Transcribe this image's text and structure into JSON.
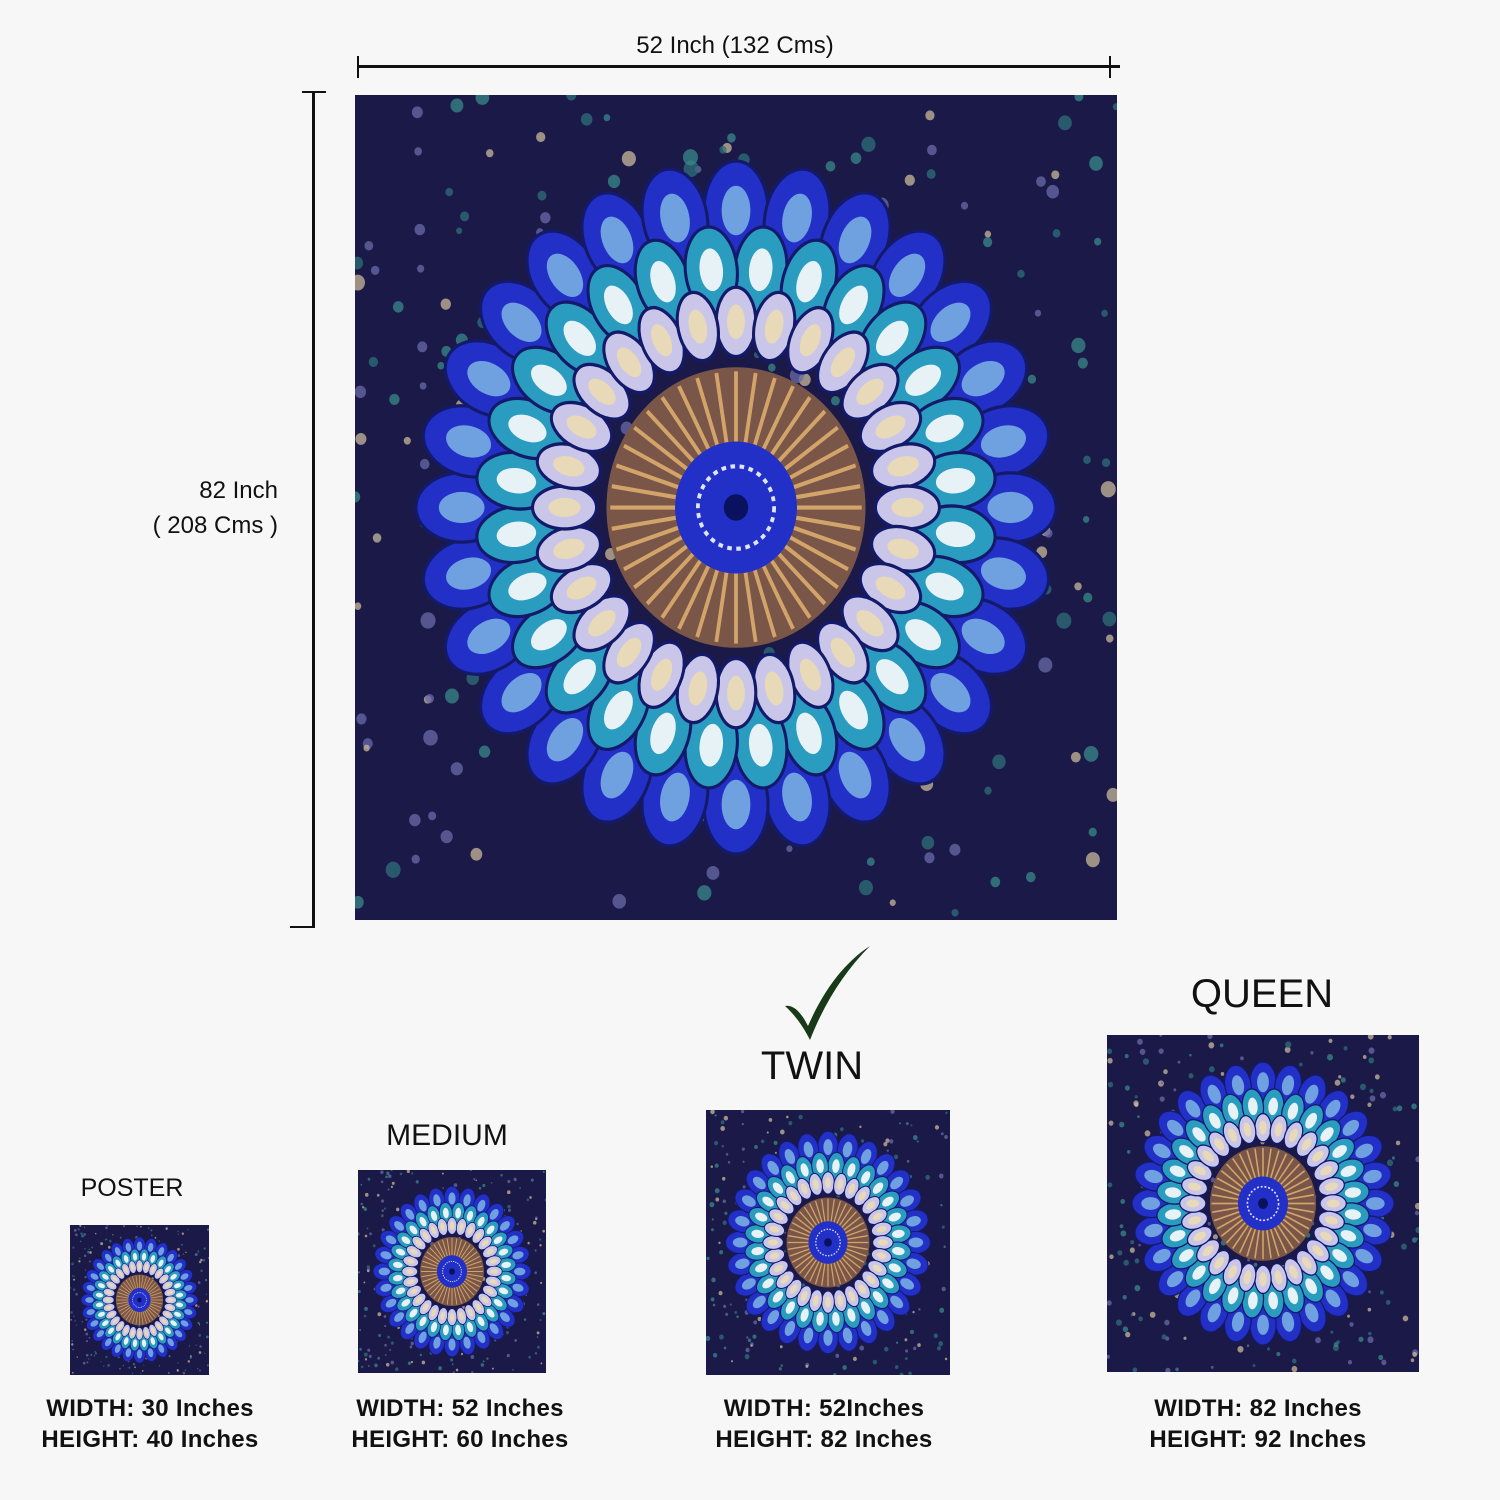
{
  "main": {
    "width_label": "52 Inch (132 Cms)",
    "height_label_line1": "82 Inch",
    "height_label_line2": "( 208 Cms )"
  },
  "selected_size": "TWIN",
  "colors": {
    "background": "#f7f7f7",
    "check": "#183a18",
    "tapestry_ground": "#1b1947",
    "royal_blue": "#2330c8",
    "teal": "#2a9cc0",
    "lavender": "#c9c6ea",
    "brown": "#7a5648"
  },
  "sizes": [
    {
      "name": "POSTER",
      "width": "WIDTH: 30 Inches",
      "height": "HEIGHT: 40 Inches"
    },
    {
      "name": "MEDIUM",
      "width": "WIDTH: 52 Inches",
      "height": "HEIGHT: 60 Inches"
    },
    {
      "name": "TWIN",
      "width": "WIDTH: 52Inches",
      "height": "HEIGHT: 82 Inches",
      "selected": true
    },
    {
      "name": "QUEEN",
      "width": "WIDTH: 82 Inches",
      "height": "HEIGHT: 92 Inches"
    }
  ],
  "icons": {
    "selected": "checkmark-icon"
  }
}
